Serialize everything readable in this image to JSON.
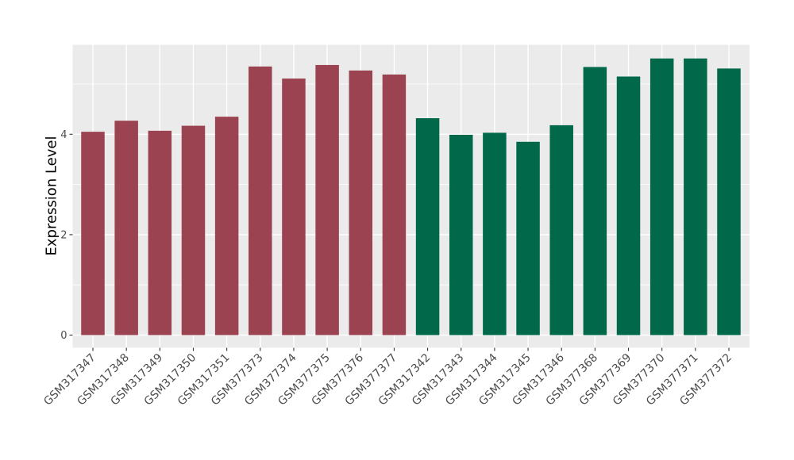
{
  "chart_data": {
    "type": "bar",
    "title": "",
    "xlabel": "",
    "ylabel": "Expression Level",
    "categories": [
      "GSM317347",
      "GSM317348",
      "GSM317349",
      "GSM317350",
      "GSM317351",
      "GSM377373",
      "GSM377374",
      "GSM377375",
      "GSM377376",
      "GSM377377",
      "GSM317342",
      "GSM317343",
      "GSM317344",
      "GSM317345",
      "GSM317346",
      "GSM377368",
      "GSM377369",
      "GSM377370",
      "GSM377371",
      "GSM377372"
    ],
    "values": [
      4.05,
      4.27,
      4.07,
      4.17,
      4.35,
      5.35,
      5.11,
      5.38,
      5.27,
      5.19,
      4.32,
      3.99,
      4.03,
      3.85,
      4.18,
      5.34,
      5.15,
      5.51,
      5.51,
      5.31
    ],
    "groups": [
      {
        "name": "group-1",
        "color": "#9C4351",
        "start_index": 0,
        "end_index": 9
      },
      {
        "name": "group-2",
        "color": "#01684A",
        "start_index": 10,
        "end_index": 19
      }
    ],
    "yticks": [
      0,
      2,
      4
    ],
    "yticks_minor": [
      1,
      3,
      5
    ],
    "ylim": [
      -0.28,
      5.79
    ],
    "x_tick_rotation_deg": 45,
    "legend": "none",
    "grid": "on",
    "style": {
      "panel_background": "#EBEBEB",
      "grid_color": "#FFFFFF",
      "tick_mark_color": "#333333",
      "tick_label_color": "#4D4D4D",
      "axis_title_color": "#000000",
      "figure_background": "#FFFFFF"
    }
  }
}
